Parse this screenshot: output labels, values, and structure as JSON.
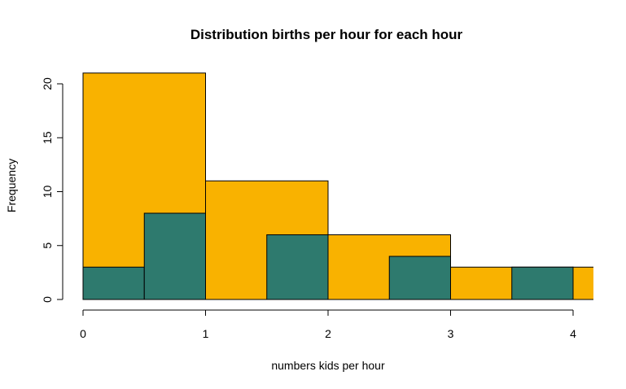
{
  "chart_data": {
    "type": "bar",
    "title": "Distribution births per hour for each hour",
    "xlabel": "numbers kids per hour",
    "ylabel": "Frequency",
    "xlim": [
      0,
      4.17
    ],
    "ylim": [
      0,
      21
    ],
    "x_ticks": [
      "0",
      "1",
      "2",
      "3",
      "4"
    ],
    "y_ticks": [
      "0",
      "5",
      "10",
      "15",
      "20"
    ],
    "grid": false,
    "legend": "none",
    "series": [
      {
        "color": "#F9B200",
        "bins": [
          {
            "x0": 0,
            "x1": 1,
            "value": 21
          },
          {
            "x0": 1,
            "x1": 2,
            "value": 11
          },
          {
            "x0": 2,
            "x1": 3,
            "value": 6
          },
          {
            "x0": 3,
            "x1": 4,
            "value": 3
          },
          {
            "x0": 4,
            "x1": 5,
            "value": 3
          }
        ]
      },
      {
        "color": "#2E7A6E",
        "bins": [
          {
            "x0": 0,
            "x1": 0.5,
            "value": 3
          },
          {
            "x0": 0.5,
            "x1": 1,
            "value": 8
          },
          {
            "x0": 1,
            "x1": 1.5,
            "value": 0
          },
          {
            "x0": 1.5,
            "x1": 2,
            "value": 6
          },
          {
            "x0": 2,
            "x1": 2.5,
            "value": 0
          },
          {
            "x0": 2.5,
            "x1": 3,
            "value": 4
          },
          {
            "x0": 3,
            "x1": 3.5,
            "value": 0
          },
          {
            "x0": 3.5,
            "x1": 4,
            "value": 3
          }
        ]
      }
    ]
  }
}
